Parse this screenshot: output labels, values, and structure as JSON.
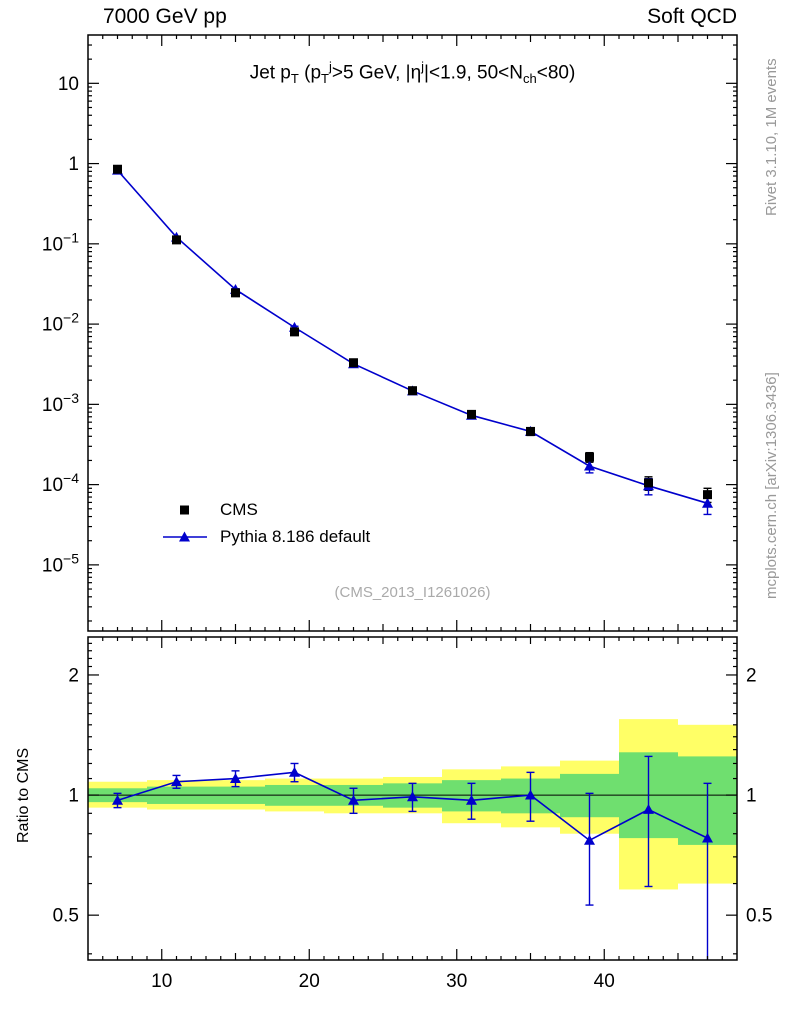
{
  "header": {
    "left": "7000 GeV pp",
    "right": "Soft QCD"
  },
  "side_notes": {
    "top": "Rivet 3.1.10,  1M events",
    "bottom": "mcplots.cern.ch [arXiv:1306.3436]"
  },
  "watermark": "(CMS_2013_I1261026)",
  "colors": {
    "cms_marker": "#000000",
    "mc_line": "#0000cc",
    "band_yellow": "#ffff66",
    "band_green": "#6fdf6f",
    "gray_text": "#999999"
  },
  "chart_data": [
    {
      "type": "scatter",
      "panel": "main",
      "title": "Jet pT (pTj>5 GeV, |ηj|<1.9, 50<Nch<80)",
      "title_segments": [
        {
          "t": "Jet p"
        },
        {
          "t": "T",
          "s": "sub"
        },
        {
          "t": " (p"
        },
        {
          "t": "T",
          "s": "sub"
        },
        {
          "t": "j",
          "s": "sup"
        },
        {
          "t": ">5 GeV, |η"
        },
        {
          "t": "j",
          "s": "sup"
        },
        {
          "t": "|<1.9, 50<N"
        },
        {
          "t": "ch",
          "s": "sub"
        },
        {
          "t": "<80)"
        }
      ],
      "x_range": [
        5,
        49
      ],
      "y_scale": "log",
      "y_range": [
        1.5e-06,
        40
      ],
      "y_major_ticks": [
        10,
        1,
        0.1,
        0.01,
        0.001,
        0.0001,
        1e-05
      ],
      "x_major_ticks": [
        10,
        20,
        30,
        40
      ],
      "x": [
        7,
        11,
        15,
        19,
        23,
        27,
        31,
        35,
        39,
        43,
        47
      ],
      "series": [
        {
          "name": "CMS",
          "marker": "square",
          "color": "#000000",
          "y": [
            0.85,
            0.112,
            0.0245,
            0.008,
            0.0033,
            0.00148,
            0.00075,
            0.00046,
            0.00022,
            0.000105,
            7.5e-05
          ],
          "yerr": [
            0.02,
            0.004,
            0.001,
            0.0004,
            0.0002,
            0.0001,
            6e-05,
            5e-05,
            3e-05,
            2e-05,
            1.5e-05
          ]
        },
        {
          "name": "Pythia 8.186 default",
          "marker": "triangle",
          "color": "#0000cc",
          "line": true,
          "y": [
            0.825,
            0.121,
            0.027,
            0.0091,
            0.0032,
            0.00147,
            0.00073,
            0.00046,
            0.00017,
            9.66e-05,
            5.85e-05
          ],
          "yerr": [
            0.01,
            0.002,
            0.0006,
            0.0003,
            0.00015,
            8e-05,
            5e-05,
            4e-05,
            3e-05,
            2.2e-05,
            1.6e-05
          ]
        }
      ]
    },
    {
      "type": "ratio",
      "panel": "ratio",
      "ylabel": "Ratio to CMS",
      "x_range": [
        5,
        49
      ],
      "y_scale": "log",
      "y_range": [
        0.386,
        2.49
      ],
      "y_major_ticks": [
        2,
        1,
        0.5
      ],
      "y_major_labels": [
        "2",
        "1",
        "0.5"
      ],
      "x_major_ticks": [
        10,
        20,
        30,
        40
      ],
      "x": [
        7,
        11,
        15,
        19,
        23,
        27,
        31,
        35,
        39,
        43,
        47
      ],
      "bin_half_width": 2,
      "values": [
        0.97,
        1.08,
        1.1,
        1.14,
        0.97,
        0.99,
        0.97,
        1.0,
        0.77,
        0.92,
        0.78
      ],
      "err_up": [
        0.04,
        0.04,
        0.05,
        0.06,
        0.07,
        0.08,
        0.1,
        0.14,
        0.24,
        0.33,
        0.29
      ],
      "err_dn": [
        0.04,
        0.04,
        0.05,
        0.06,
        0.07,
        0.08,
        0.1,
        0.14,
        0.24,
        0.33,
        0.45
      ],
      "band_yellow_lo": [
        0.93,
        0.92,
        0.92,
        0.91,
        0.9,
        0.9,
        0.85,
        0.83,
        0.8,
        0.58,
        0.6
      ],
      "band_yellow_hi": [
        1.08,
        1.09,
        1.09,
        1.1,
        1.1,
        1.11,
        1.16,
        1.18,
        1.22,
        1.55,
        1.5
      ],
      "band_green_lo": [
        0.96,
        0.95,
        0.95,
        0.94,
        0.94,
        0.93,
        0.91,
        0.9,
        0.88,
        0.78,
        0.75
      ],
      "band_green_hi": [
        1.04,
        1.05,
        1.05,
        1.06,
        1.06,
        1.07,
        1.09,
        1.1,
        1.13,
        1.28,
        1.25
      ]
    }
  ]
}
